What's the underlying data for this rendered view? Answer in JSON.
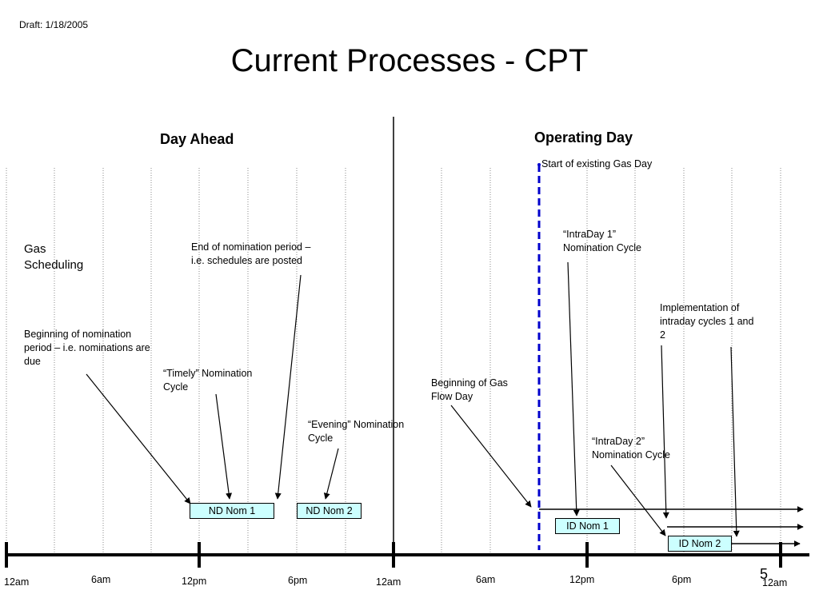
{
  "slide": {
    "draft": "Draft: 1/18/2005",
    "title": "Current Processes - CPT",
    "page_number": "5"
  },
  "headers": {
    "day_ahead": "Day Ahead",
    "operating_day": "Operating Day"
  },
  "labels": {
    "gas_scheduling": "Gas Scheduling",
    "beginning_nomination": "Beginning of nomination period – i.e. nominations are due",
    "end_nomination": "End of nomination period – i.e. schedules are posted",
    "timely": "“Timely” Nomination Cycle",
    "evening": "“Evening” Nomination Cycle",
    "beginning_gas_flow": "Beginning of Gas Flow Day",
    "start_gas_day": "Start of existing Gas Day",
    "intraday1": "“IntraDay 1” Nomination Cycle",
    "intraday2": "“IntraDay 2” Nomination Cycle",
    "implementation": "Implementation of intraday cycles 1 and 2"
  },
  "boxes": {
    "nd_nom_1": "ND Nom 1",
    "nd_nom_2": "ND Nom 2",
    "id_nom_1": "ID Nom 1",
    "id_nom_2": "ID Nom 2"
  },
  "timeline_ticks": [
    "12am",
    "6am",
    "12pm",
    "6pm",
    "12am",
    "6am",
    "12pm",
    "6pm",
    "12am"
  ],
  "colors": {
    "box_fill": "#ccffff",
    "gas_day_line": "#0000cc"
  }
}
